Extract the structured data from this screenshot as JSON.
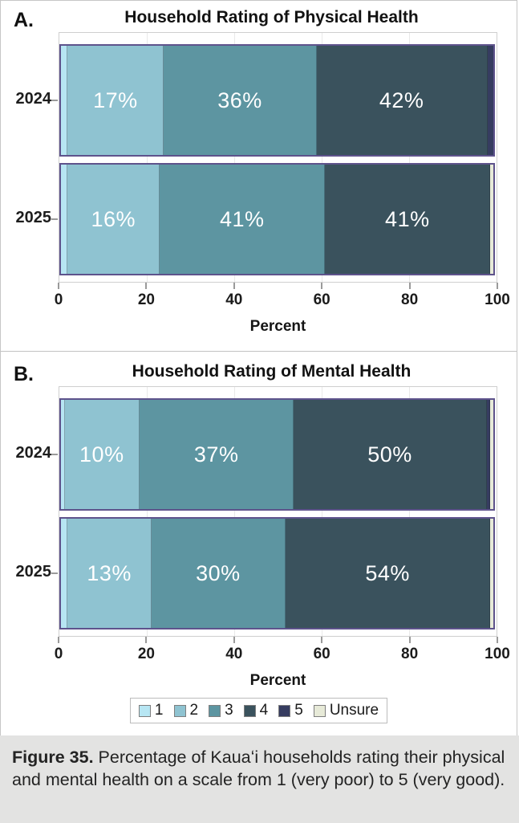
{
  "colors": {
    "1": "#b7e6f3",
    "2": "#8fc3d1",
    "3": "#5d95a1",
    "4": "#3a525d",
    "5": "#363c60",
    "Unsure": "#e7ead8",
    "bar_outline": "#5e538c",
    "caption_background": "#e3e3e2"
  },
  "chart_data": [
    {
      "panel": "A.",
      "type": "bar",
      "stacked": true,
      "orientation": "horizontal",
      "title": "Household Rating of Physical Health",
      "xlabel": "Percent",
      "xlim": [
        0,
        100
      ],
      "xticks": [
        0,
        20,
        40,
        60,
        80,
        100
      ],
      "grid": true,
      "categories": [
        "2024",
        "2025"
      ],
      "series": [
        {
          "name": "1",
          "values": [
            2,
            2
          ]
        },
        {
          "name": "2",
          "values": [
            17,
            16
          ]
        },
        {
          "name": "3",
          "values": [
            36,
            41
          ]
        },
        {
          "name": "4",
          "values": [
            42,
            41
          ]
        },
        {
          "name": "5",
          "values": [
            2,
            0
          ]
        },
        {
          "name": "Unsure",
          "values": [
            0,
            1
          ]
        }
      ],
      "bar_labels": [
        [
          "",
          "17%",
          "36%",
          "42%",
          "",
          ""
        ],
        [
          "",
          "16%",
          "41%",
          "41%",
          "",
          ""
        ]
      ]
    },
    {
      "panel": "B.",
      "type": "bar",
      "stacked": true,
      "orientation": "horizontal",
      "title": "Household Rating of Mental Health",
      "xlabel": "Percent",
      "xlim": [
        0,
        100
      ],
      "xticks": [
        0,
        20,
        40,
        60,
        80,
        100
      ],
      "grid": true,
      "categories": [
        "2024",
        "2025"
      ],
      "series": [
        {
          "name": "1",
          "values": [
            1,
            2
          ]
        },
        {
          "name": "2",
          "values": [
            10,
            13
          ]
        },
        {
          "name": "3",
          "values": [
            37,
            30
          ]
        },
        {
          "name": "4",
          "values": [
            50,
            54
          ]
        },
        {
          "name": "5",
          "values": [
            1,
            0
          ]
        },
        {
          "name": "Unsure",
          "values": [
            1,
            1
          ]
        }
      ],
      "bar_labels": [
        [
          "",
          "10%",
          "37%",
          "50%",
          "",
          ""
        ],
        [
          "",
          "13%",
          "30%",
          "54%",
          "",
          ""
        ]
      ]
    }
  ],
  "legend": {
    "position": "bottom",
    "items": [
      {
        "label": "1",
        "color": "#b7e6f3"
      },
      {
        "label": "2",
        "color": "#8fc3d1"
      },
      {
        "label": "3",
        "color": "#5d95a1"
      },
      {
        "label": "4",
        "color": "#3a525d"
      },
      {
        "label": "5",
        "color": "#363c60"
      },
      {
        "label": "Unsure",
        "color": "#e7ead8"
      }
    ]
  },
  "caption": {
    "label": "Figure 35.",
    "text": "Percentage of Kauaʻi households rating their physical and mental health on a scale from 1 (very poor) to 5 (very good)."
  }
}
